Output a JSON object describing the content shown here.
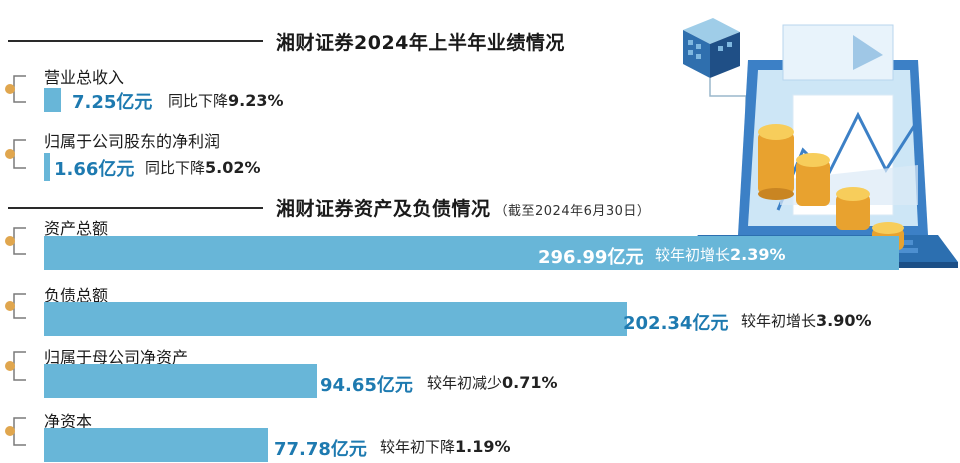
{
  "section1": {
    "title": "湘财证券2024年上半年业绩情况"
  },
  "section2": {
    "title": "湘财证券资产及负债情况",
    "note": "（截至2024年6月30日）"
  },
  "colors": {
    "bar": "#68b6d8",
    "value_text": "#1e7ab0",
    "dot": "#e0a64e"
  },
  "icons": [
    "laptop-illustration-icon",
    "gold-coins-icon",
    "data-cube-icon",
    "connector-icon"
  ],
  "chart_data": [
    {
      "type": "bar",
      "orientation": "horizontal",
      "title": "湘财证券2024年上半年业绩情况",
      "categories": [
        "营业总收入",
        "归属于公司股东的净利润"
      ],
      "values": [
        7.25,
        1.66
      ],
      "value_labels": [
        "7.25亿元",
        "1.66亿元"
      ],
      "change_text": [
        "同比下降",
        "同比下降"
      ],
      "change_values": [
        "9.23%",
        "5.02%"
      ],
      "unit": "亿元"
    },
    {
      "type": "bar",
      "orientation": "horizontal",
      "title": "湘财证券资产及负债情况",
      "subtitle": "（截至2024年6月30日）",
      "categories": [
        "资产总额",
        "负债总额",
        "归属于母公司净资产",
        "净资本"
      ],
      "values": [
        296.99,
        202.34,
        94.65,
        77.78
      ],
      "value_labels": [
        "296.99亿元",
        "202.34亿元",
        "94.65亿元",
        "77.78亿元"
      ],
      "change_text": [
        "较年初增长",
        "较年初增长",
        "较年初减少",
        "较年初下降"
      ],
      "change_values": [
        "2.39%",
        "3.90%",
        "0.71%",
        "1.19%"
      ],
      "unit": "亿元"
    }
  ]
}
